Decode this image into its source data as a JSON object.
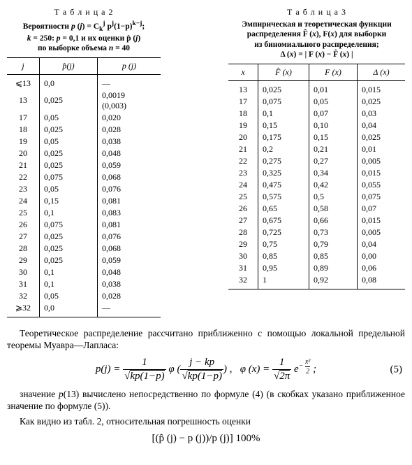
{
  "tableLeft": {
    "label": "Т а б л и ц а  2",
    "caption": "Вероятности <i>p</i> (<i>j</i>) = C<sub>k</sub><sup>j</sup> p<sup>j</sup>(1−p)<sup>k−j</sup>;<br><i>k</i> = 250: <i>p</i> = 0,1 и их оценки p̂ (<i>j</i>)<br>по выборке объема <i>n</i> = 40",
    "headers": [
      "j",
      "p̂(j)",
      "p (j)"
    ],
    "rows": [
      [
        "<13",
        "0,0",
        "—"
      ],
      [
        "13",
        "0,025",
        "0,0019\n(0,003)"
      ],
      [
        "17",
        "0,05",
        "0,020"
      ],
      [
        "18",
        "0,025",
        "0,028"
      ],
      [
        "19",
        "0,05",
        "0,038"
      ],
      [
        "20",
        "0,025",
        "0,048"
      ],
      [
        "21",
        "0,025",
        "0,059"
      ],
      [
        "22",
        "0,075",
        "0,068"
      ],
      [
        "23",
        "0,05",
        "0,076"
      ],
      [
        "24",
        "0,15",
        "0,081"
      ],
      [
        "25",
        "0,1",
        "0,083"
      ],
      [
        "26",
        "0,075",
        "0,081"
      ],
      [
        "27",
        "0,025",
        "0,076"
      ],
      [
        "28",
        "0,025",
        "0,068"
      ],
      [
        "29",
        "0,025",
        "0,059"
      ],
      [
        "30",
        "0,1",
        "0,048"
      ],
      [
        "31",
        "0,1",
        "0,038"
      ],
      [
        "32",
        "0,05",
        "0,028"
      ],
      [
        ">32",
        "0,0",
        "—"
      ]
    ]
  },
  "tableRight": {
    "label": "Т а б л и ц а  3",
    "caption": "Эмпирическая и теоретическая функции<br>распределения F̂ (<i>x</i>), F(<i>x</i>) для выборки<br>из биномиального распределения;<br>Δ (<i>x</i>) = | F (<i>x</i>) − F̂ (<i>x</i>) |",
    "headers": [
      "x",
      "F̂ (x)",
      "F (x)",
      "Δ (x)"
    ],
    "rows": [
      [
        "13",
        "0,025",
        "0,01",
        "0,015"
      ],
      [
        "17",
        "0,075",
        "0,05",
        "0,025"
      ],
      [
        "18",
        "0,1",
        "0,07",
        "0,03"
      ],
      [
        "19",
        "0,15",
        "0,10",
        "0,04"
      ],
      [
        "20",
        "0,175",
        "0,15",
        "0,025"
      ],
      [
        "21",
        "0,2",
        "0,21",
        "0,01"
      ],
      [
        "22",
        "0,275",
        "0,27",
        "0,005"
      ],
      [
        "23",
        "0,325",
        "0,34",
        "0,015"
      ],
      [
        "24",
        "0,475",
        "0,42",
        "0,055"
      ],
      [
        "25",
        "0,575",
        "0,5",
        "0,075"
      ],
      [
        "26",
        "0,65",
        "0,58",
        "0,07"
      ],
      [
        "27",
        "0,675",
        "0,66",
        "0,015"
      ],
      [
        "28",
        "0,725",
        "0,73",
        "0,005"
      ],
      [
        "29",
        "0,75",
        "0,79",
        "0,04"
      ],
      [
        "30",
        "0,85",
        "0,85",
        "0,00"
      ],
      [
        "31",
        "0,95",
        "0,89",
        "0,06"
      ],
      [
        "32",
        "1",
        "0,92",
        "0,08"
      ]
    ]
  },
  "para1": "Теоретическое распределение рассчитано приближенно с по­мощью локальной предельной теоремы Муавра—Лапласа:",
  "formula1_html": "p(j) = <span style='display:inline-block;vertical-align:middle;text-align:center;'><span style='display:block;border-bottom:1px solid #000;padding:0 2px;'>1</span><span style='display:block;padding:0 2px;'>√<span style='border-top:1px solid #000;'>kp(1−p)</span></span></span> φ (<span style='display:inline-block;vertical-align:middle;text-align:center;'><span style='display:block;border-bottom:1px solid #000;padding:0 2px;'>j − kp</span><span style='display:block;padding:0 2px;'>√<span style='border-top:1px solid #000;'>kp(1−p)</span></span></span>) ,&nbsp;&nbsp; φ (x) = <span style='display:inline-block;vertical-align:middle;text-align:center;'><span style='display:block;border-bottom:1px solid #000;padding:0 2px;'>1</span><span style='display:block;padding:0 2px;'>√<span style='border-top:1px solid #000;'>2π</span></span></span> e<sup style='font-size:10px;'>− <span style='display:inline-block;vertical-align:middle;text-align:center;'><span style='display:block;border-bottom:1px solid #000;'>x²</span><span style='display:block;'>2</span></span></sup> ;",
  "eqnum1": "(5)",
  "para2": "значение <i>p</i>(13) вычислено непосредственно по формуле (4) (в скобках указано приближенное значение по формуле (5)).",
  "para3": "Как видно из табл. 2, относительная погрешность оценки",
  "formula2": "[(p̂ (j) − p (j))/p (j)] 100%"
}
